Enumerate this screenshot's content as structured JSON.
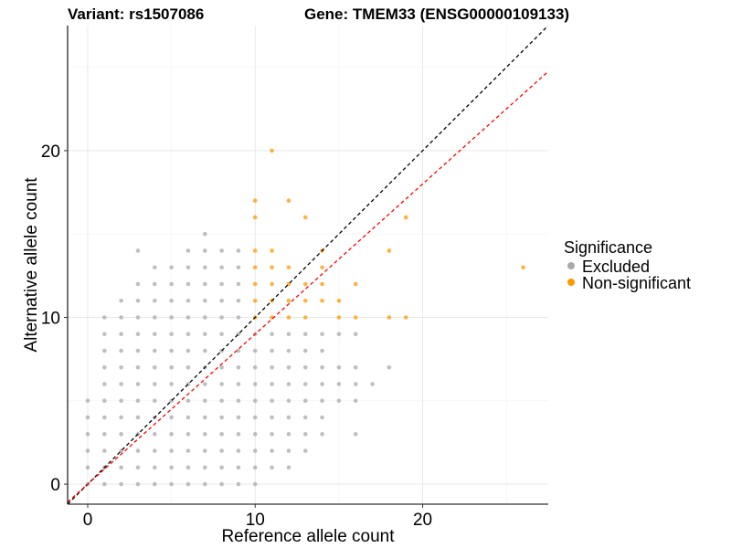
{
  "title_left": "Variant: rs1507086",
  "title_right": "Gene: TMEM33 (ENSG00000109133)",
  "legend": {
    "title": "Significance",
    "items": [
      {
        "label": "Excluded",
        "color": "#A9A9A9"
      },
      {
        "label": "Non-significant",
        "color": "#FF9900"
      }
    ]
  },
  "chart_data": {
    "type": "scatter",
    "xlabel": "Reference allele count",
    "ylabel": "Alternative allele count",
    "xlim": [
      -1.2,
      27.5
    ],
    "ylim": [
      -1.2,
      27.5
    ],
    "xticks": [
      0,
      10,
      20
    ],
    "yticks": [
      0,
      10,
      20
    ],
    "grid": true,
    "legend_position": "right",
    "reference_lines": [
      {
        "name": "y = x",
        "slope": 1.0,
        "intercept": 0,
        "color": "#000000",
        "style": "dashed"
      },
      {
        "name": "fitted",
        "slope": 0.9,
        "intercept": 0,
        "color": "#FF0000",
        "style": "dashed"
      }
    ],
    "series": [
      {
        "name": "Excluded",
        "color": "#A9A9A9",
        "points": [
          [
            0,
            0
          ],
          [
            0,
            1
          ],
          [
            0,
            2
          ],
          [
            0,
            3
          ],
          [
            0,
            4
          ],
          [
            0,
            5
          ],
          [
            1,
            0
          ],
          [
            1,
            1
          ],
          [
            1,
            2
          ],
          [
            1,
            3
          ],
          [
            1,
            4
          ],
          [
            1,
            5
          ],
          [
            1,
            6
          ],
          [
            1,
            7
          ],
          [
            1,
            8
          ],
          [
            1,
            9
          ],
          [
            1,
            10
          ],
          [
            2,
            0
          ],
          [
            2,
            1
          ],
          [
            2,
            2
          ],
          [
            2,
            3
          ],
          [
            2,
            4
          ],
          [
            2,
            5
          ],
          [
            2,
            6
          ],
          [
            2,
            7
          ],
          [
            2,
            8
          ],
          [
            2,
            9
          ],
          [
            2,
            10
          ],
          [
            2,
            11
          ],
          [
            3,
            0
          ],
          [
            3,
            1
          ],
          [
            3,
            2
          ],
          [
            3,
            3
          ],
          [
            3,
            4
          ],
          [
            3,
            5
          ],
          [
            3,
            6
          ],
          [
            3,
            7
          ],
          [
            3,
            8
          ],
          [
            3,
            9
          ],
          [
            3,
            10
          ],
          [
            3,
            11
          ],
          [
            3,
            12
          ],
          [
            3,
            14
          ],
          [
            4,
            0
          ],
          [
            4,
            1
          ],
          [
            4,
            2
          ],
          [
            4,
            3
          ],
          [
            4,
            4
          ],
          [
            4,
            5
          ],
          [
            4,
            6
          ],
          [
            4,
            7
          ],
          [
            4,
            8
          ],
          [
            4,
            9
          ],
          [
            4,
            10
          ],
          [
            4,
            11
          ],
          [
            4,
            12
          ],
          [
            4,
            13
          ],
          [
            5,
            0
          ],
          [
            5,
            1
          ],
          [
            5,
            2
          ],
          [
            5,
            3
          ],
          [
            5,
            4
          ],
          [
            5,
            5
          ],
          [
            5,
            6
          ],
          [
            5,
            7
          ],
          [
            5,
            8
          ],
          [
            5,
            9
          ],
          [
            5,
            10
          ],
          [
            5,
            11
          ],
          [
            5,
            12
          ],
          [
            5,
            13
          ],
          [
            6,
            0
          ],
          [
            6,
            1
          ],
          [
            6,
            2
          ],
          [
            6,
            3
          ],
          [
            6,
            4
          ],
          [
            6,
            5
          ],
          [
            6,
            6
          ],
          [
            6,
            7
          ],
          [
            6,
            8
          ],
          [
            6,
            9
          ],
          [
            6,
            10
          ],
          [
            6,
            11
          ],
          [
            6,
            12
          ],
          [
            6,
            13
          ],
          [
            6,
            14
          ],
          [
            7,
            0
          ],
          [
            7,
            1
          ],
          [
            7,
            2
          ],
          [
            7,
            3
          ],
          [
            7,
            4
          ],
          [
            7,
            5
          ],
          [
            7,
            6
          ],
          [
            7,
            7
          ],
          [
            7,
            8
          ],
          [
            7,
            9
          ],
          [
            7,
            10
          ],
          [
            7,
            11
          ],
          [
            7,
            12
          ],
          [
            7,
            13
          ],
          [
            7,
            14
          ],
          [
            7,
            15
          ],
          [
            8,
            0
          ],
          [
            8,
            1
          ],
          [
            8,
            2
          ],
          [
            8,
            3
          ],
          [
            8,
            4
          ],
          [
            8,
            5
          ],
          [
            8,
            6
          ],
          [
            8,
            7
          ],
          [
            8,
            8
          ],
          [
            8,
            9
          ],
          [
            8,
            10
          ],
          [
            8,
            11
          ],
          [
            8,
            12
          ],
          [
            8,
            13
          ],
          [
            8,
            14
          ],
          [
            9,
            0
          ],
          [
            9,
            1
          ],
          [
            9,
            2
          ],
          [
            9,
            3
          ],
          [
            9,
            4
          ],
          [
            9,
            5
          ],
          [
            9,
            6
          ],
          [
            9,
            7
          ],
          [
            9,
            8
          ],
          [
            9,
            9
          ],
          [
            9,
            10
          ],
          [
            9,
            11
          ],
          [
            9,
            12
          ],
          [
            9,
            13
          ],
          [
            9,
            14
          ],
          [
            10,
            0
          ],
          [
            10,
            1
          ],
          [
            10,
            2
          ],
          [
            10,
            3
          ],
          [
            10,
            4
          ],
          [
            10,
            5
          ],
          [
            10,
            6
          ],
          [
            10,
            7
          ],
          [
            10,
            8
          ],
          [
            10,
            9
          ],
          [
            11,
            1
          ],
          [
            11,
            2
          ],
          [
            11,
            3
          ],
          [
            11,
            4
          ],
          [
            11,
            5
          ],
          [
            11,
            6
          ],
          [
            11,
            7
          ],
          [
            11,
            8
          ],
          [
            11,
            9
          ],
          [
            12,
            1
          ],
          [
            12,
            2
          ],
          [
            12,
            3
          ],
          [
            12,
            4
          ],
          [
            12,
            5
          ],
          [
            12,
            6
          ],
          [
            12,
            7
          ],
          [
            12,
            8
          ],
          [
            12,
            9
          ],
          [
            13,
            2
          ],
          [
            13,
            3
          ],
          [
            13,
            4
          ],
          [
            13,
            5
          ],
          [
            13,
            6
          ],
          [
            13,
            7
          ],
          [
            13,
            8
          ],
          [
            13,
            9
          ],
          [
            14,
            3
          ],
          [
            14,
            4
          ],
          [
            14,
            5
          ],
          [
            14,
            6
          ],
          [
            14,
            7
          ],
          [
            14,
            8
          ],
          [
            14,
            9
          ],
          [
            15,
            5
          ],
          [
            15,
            6
          ],
          [
            15,
            7
          ],
          [
            15,
            9
          ],
          [
            16,
            3
          ],
          [
            16,
            5
          ],
          [
            16,
            6
          ],
          [
            16,
            7
          ],
          [
            16,
            9
          ],
          [
            17,
            6
          ],
          [
            18,
            7
          ]
        ]
      },
      {
        "name": "Non-significant",
        "color": "#FF9900",
        "points": [
          [
            10,
            10
          ],
          [
            10,
            11
          ],
          [
            10,
            12
          ],
          [
            10,
            13
          ],
          [
            10,
            14
          ],
          [
            10,
            16
          ],
          [
            10,
            17
          ],
          [
            11,
            10
          ],
          [
            11,
            11
          ],
          [
            11,
            12
          ],
          [
            11,
            13
          ],
          [
            11,
            14
          ],
          [
            11,
            20
          ],
          [
            12,
            10
          ],
          [
            12,
            11
          ],
          [
            12,
            12
          ],
          [
            12,
            13
          ],
          [
            12,
            17
          ],
          [
            13,
            10
          ],
          [
            13,
            11
          ],
          [
            13,
            12
          ],
          [
            13,
            16
          ],
          [
            14,
            11
          ],
          [
            14,
            12
          ],
          [
            14,
            13
          ],
          [
            14,
            14
          ],
          [
            15,
            10
          ],
          [
            15,
            11
          ],
          [
            16,
            10
          ],
          [
            16,
            12
          ],
          [
            18,
            10
          ],
          [
            18,
            14
          ],
          [
            19,
            10
          ],
          [
            19,
            16
          ],
          [
            26,
            13
          ]
        ]
      }
    ]
  }
}
